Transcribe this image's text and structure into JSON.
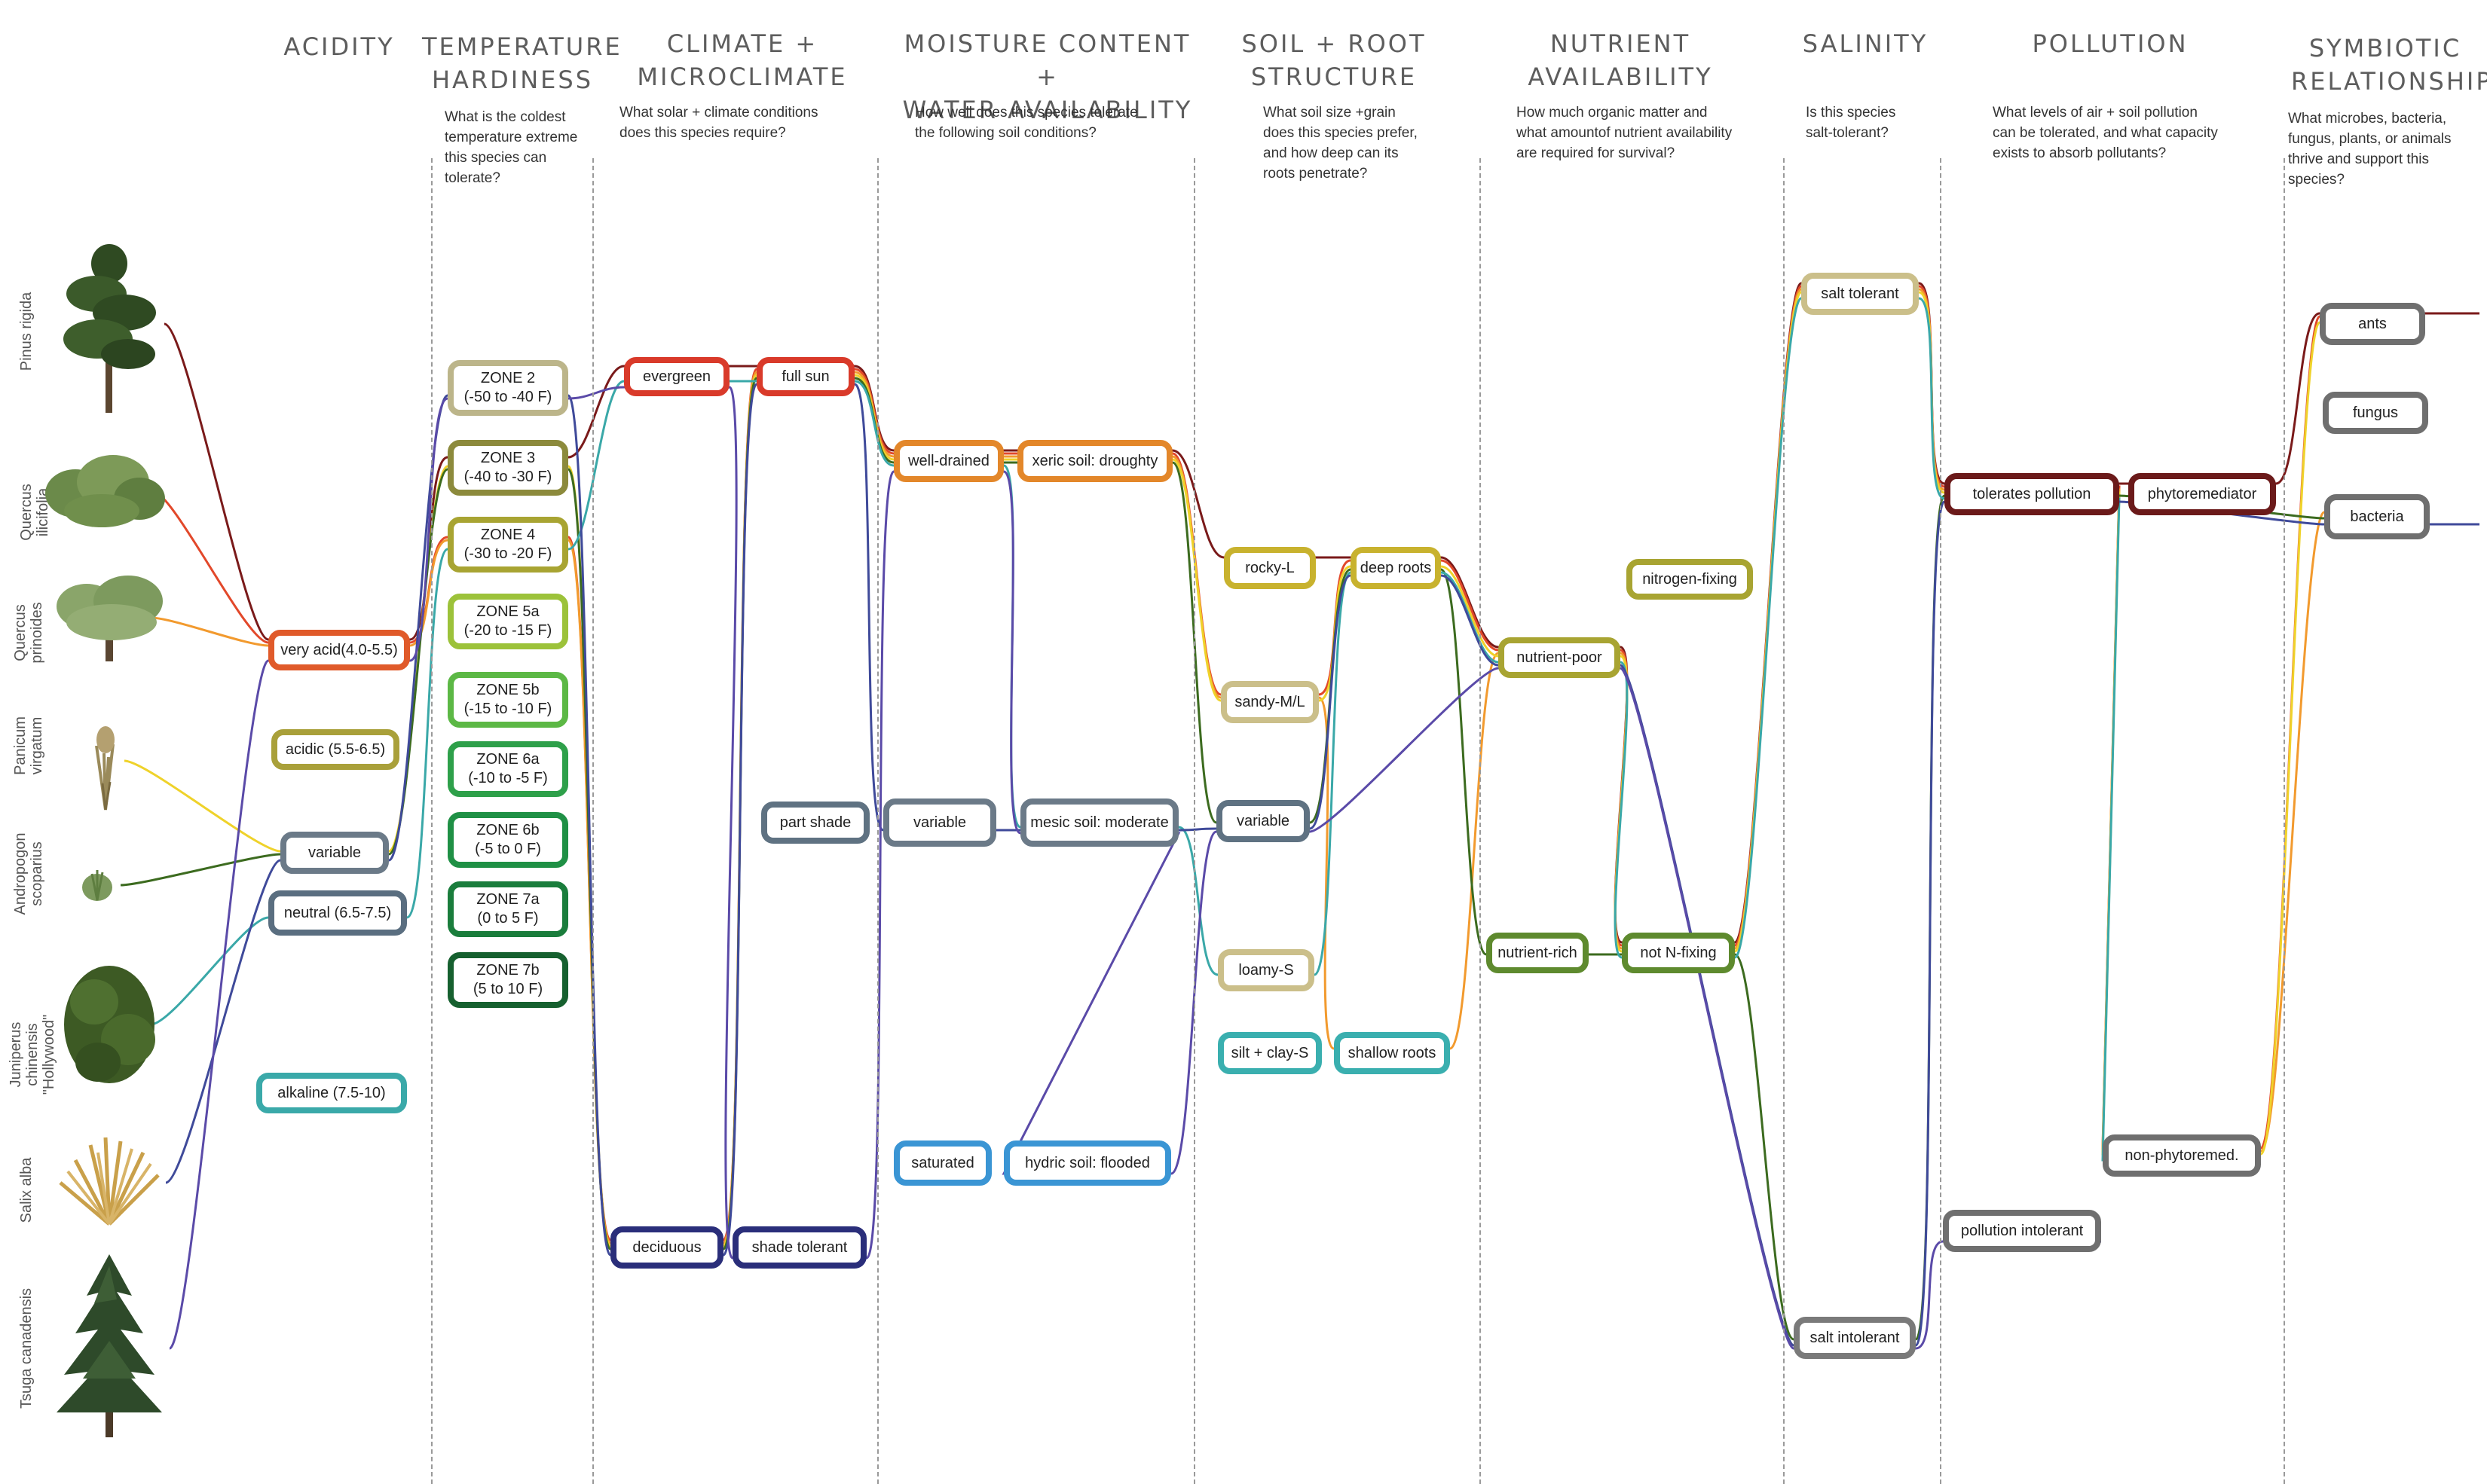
{
  "headers": {
    "acidity": "ACIDITY",
    "temperature": "TEMPERATURE\nHARDINESS",
    "climate": "CLIMATE +\nMICROCLIMATE",
    "moisture": "MOISTURE CONTENT +\nWATER AVAILABILITY",
    "soil": "SOIL + ROOT\nSTRUCTURE",
    "nutrient": "NUTRIENT\nAVAILABILITY",
    "salinity": "SALINITY",
    "pollution": "POLLUTION",
    "symbiotic": "SYMBIOTIC\nRELATIONSHIPS"
  },
  "questions": {
    "temperature": "What is the coldest\ntemperature extreme\nthis species can\ntolerate?",
    "climate": "What solar + climate conditions\ndoes this species require?",
    "moisture": "How well does this species tolerate\nthe following soil conditions?",
    "soil": "What soil size +grain\ndoes this species prefer,\nand how deep can its\nroots penetrate?",
    "nutrient": "How much organic matter and\nwhat amountof nutrient availability\nare required for survival?",
    "salinity": "Is this species\nsalt-tolerant?",
    "pollution": "What levels of air + soil pollution\ncan be tolerated, and what capacity\nexists to absorb pollutants?",
    "symbiotic": "What microbes, bacteria,\nfungus, plants, or animals\nthrive and support this\nspecies?"
  },
  "species": [
    {
      "name": "Pinus rigida",
      "color": "#7a1a1a"
    },
    {
      "name": "Quercus ilicifolia",
      "color": "#e2482a"
    },
    {
      "name": "Quercus\nprinoides",
      "color": "#f29a2e"
    },
    {
      "name": "Panicum\nvirgatum",
      "color": "#efd22a"
    },
    {
      "name": "Andropogon\nscoparius",
      "color": "#3c6b1f"
    },
    {
      "name": "Juniperus chinensis\n\"Hollywood\"",
      "color": "#3aa8a8"
    },
    {
      "name": "Salix alba",
      "color": "#3f4a9a"
    },
    {
      "name": "Tsuga canadensis",
      "color": "#5a4aa8"
    }
  ],
  "nodes": {
    "very_acid": {
      "label": "very acid(4.0-5.5)",
      "color": "#e05a2a"
    },
    "acidic": {
      "label": "acidic (5.5-6.5)",
      "color": "#a9a03a"
    },
    "variable_ph": {
      "label": "variable",
      "color": "#6b7a88"
    },
    "neutral": {
      "label": "neutral (6.5-7.5)",
      "color": "#5a6e80"
    },
    "alkaline": {
      "label": "alkaline (7.5-10)",
      "color": "#3aa9a9"
    },
    "zone2": {
      "label": "ZONE 2\n(-50 to -40 F)",
      "color": "#bcb58a"
    },
    "zone3": {
      "label": "ZONE 3\n(-40 to -30 F)",
      "color": "#8c8a3c"
    },
    "zone4": {
      "label": "ZONE 4\n(-30 to -20 F)",
      "color": "#a8a432"
    },
    "zone5a": {
      "label": "ZONE 5a\n(-20 to -15 F)",
      "color": "#9cc23a"
    },
    "zone5b": {
      "label": "ZONE 5b\n(-15 to -10 F)",
      "color": "#5cb845"
    },
    "zone6a": {
      "label": "ZONE 6a\n(-10 to -5 F)",
      "color": "#2ea04a"
    },
    "zone6b": {
      "label": "ZONE 6b\n(-5 to 0 F)",
      "color": "#1f9045"
    },
    "zone7a": {
      "label": "ZONE 7a\n(0 to 5 F)",
      "color": "#1a7d3c"
    },
    "zone7b": {
      "label": "ZONE 7b\n(5 to 10 F)",
      "color": "#16602f"
    },
    "evergreen": {
      "label": "evergreen",
      "color": "#d93a2a"
    },
    "full_sun": {
      "label": "full sun",
      "color": "#d93a2a"
    },
    "part_shade": {
      "label": "part shade",
      "color": "#5f7282"
    },
    "deciduous": {
      "label": "deciduous",
      "color": "#2a2e7a"
    },
    "shade_tolerant": {
      "label": "shade tolerant",
      "color": "#2a2e7a"
    },
    "well_drained": {
      "label": "well-drained",
      "color": "#e3872a"
    },
    "xeric": {
      "label": "xeric soil: droughty",
      "color": "#e3872a"
    },
    "variable_moist": {
      "label": "variable",
      "color": "#6b7a88"
    },
    "mesic": {
      "label": "mesic soil: moderate",
      "color": "#6b7a88"
    },
    "saturated": {
      "label": "saturated",
      "color": "#3a95d4"
    },
    "hydric": {
      "label": "hydric soil: flooded",
      "color": "#3a95d4"
    },
    "rocky": {
      "label": "rocky-L",
      "color": "#c8b22e"
    },
    "deep_roots": {
      "label": "deep roots",
      "color": "#c8b22e"
    },
    "sandy": {
      "label": "sandy-M/L",
      "color": "#cbbf8a"
    },
    "variable_soil": {
      "label": "variable",
      "color": "#5f7282"
    },
    "loamy": {
      "label": "loamy-S",
      "color": "#cbbf8a"
    },
    "silt_clay": {
      "label": "silt + clay-S",
      "color": "#3aafaf"
    },
    "shallow_roots": {
      "label": "shallow roots",
      "color": "#3aafaf"
    },
    "nutrient_poor": {
      "label": "nutrient-poor",
      "color": "#a8a432"
    },
    "nitrogen_fixing": {
      "label": "nitrogen-fixing",
      "color": "#a8a432"
    },
    "nutrient_rich": {
      "label": "nutrient-rich",
      "color": "#5e8a2e"
    },
    "not_n_fixing": {
      "label": "not N-fixing",
      "color": "#5e8a2e"
    },
    "salt_tolerant": {
      "label": "salt tolerant",
      "color": "#cbbf8a"
    },
    "salt_intolerant": {
      "label": "salt intolerant",
      "color": "#7a7a7a"
    },
    "tolerates_pollution": {
      "label": "tolerates pollution",
      "color": "#6b1a1a"
    },
    "phytoremediator": {
      "label": "phytoremediator",
      "color": "#6b1a1a"
    },
    "non_phytoremed": {
      "label": "non-phytoremed.",
      "color": "#6f6f6f"
    },
    "pollution_intolerant": {
      "label": "pollution intolerant",
      "color": "#6f6f6f"
    },
    "ants": {
      "label": "ants",
      "color": "#6f6f6f"
    },
    "fungus": {
      "label": "fungus",
      "color": "#6f6f6f"
    },
    "bacteria": {
      "label": "bacteria",
      "color": "#6f6f6f"
    }
  },
  "paths": [
    {
      "species": "Pinus rigida",
      "color": "#7a1a1a",
      "through": [
        "very_acid",
        "zone3",
        "evergreen",
        "full_sun",
        "well_drained",
        "xeric",
        "rocky",
        "deep_roots",
        "nutrient_poor",
        "not_n_fixing",
        "salt_tolerant",
        "tolerates_pollution",
        "phytoremediator",
        "ants"
      ]
    },
    {
      "species": "Quercus ilicifolia",
      "color": "#e2482a",
      "through": [
        "very_acid",
        "zone4",
        "deciduous",
        "full_sun",
        "well_drained",
        "xeric",
        "sandy",
        "deep_roots",
        "nutrient_poor",
        "not_n_fixing",
        "salt_tolerant",
        "tolerates_pollution",
        "non_phytoremed",
        "ants"
      ]
    },
    {
      "species": "Quercus prinoides",
      "color": "#f29a2e",
      "through": [
        "very_acid",
        "zone4",
        "deciduous",
        "full_sun",
        "well_drained",
        "xeric",
        "sandy",
        "shallow_roots",
        "nutrient_poor",
        "not_n_fixing",
        "salt_tolerant",
        "tolerates_pollution",
        "non_phytoremed",
        "bacteria"
      ]
    },
    {
      "species": "Panicum virgatum",
      "color": "#efd22a",
      "through": [
        "variable_ph",
        "zone3",
        "deciduous",
        "full_sun",
        "well_drained",
        "xeric",
        "sandy",
        "deep_roots",
        "nutrient_poor",
        "not_n_fixing",
        "salt_tolerant",
        "tolerates_pollution",
        "non_phytoremed",
        "ants"
      ]
    },
    {
      "species": "Andropogon scoparius",
      "color": "#3c6b1f",
      "through": [
        "variable_ph",
        "zone3",
        "deciduous",
        "full_sun",
        "well_drained",
        "xeric",
        "variable_soil",
        "deep_roots",
        "nutrient_rich",
        "not_n_fixing",
        "salt_intolerant",
        "tolerates_pollution",
        "bacteria"
      ]
    },
    {
      "species": "Juniperus chinensis Hollywood",
      "color": "#3aa8a8",
      "through": [
        "neutral",
        "zone4",
        "evergreen",
        "full_sun",
        "well_drained",
        "mesic",
        "loamy",
        "deep_roots",
        "nutrient_poor",
        "not_n_fixing",
        "salt_tolerant",
        "tolerates_pollution",
        "non_phytoremed"
      ]
    },
    {
      "species": "Salix alba",
      "color": "#3f4a9a",
      "through": [
        "variable_ph",
        "zone2",
        "deciduous",
        "full_sun",
        "variable_moist",
        "mesic",
        "variable_soil",
        "deep_roots",
        "nutrient_poor",
        "salt_intolerant",
        "tolerates_pollution",
        "bacteria"
      ]
    },
    {
      "species": "Tsuga canadensis",
      "color": "#5a4aa8",
      "through": [
        "very_acid",
        "zone2",
        "evergreen",
        "shade_tolerant",
        "well_drained",
        "mesic",
        "hydric",
        "variable_soil",
        "nutrient_poor",
        "salt_intolerant",
        "pollution_intolerant"
      ]
    }
  ]
}
